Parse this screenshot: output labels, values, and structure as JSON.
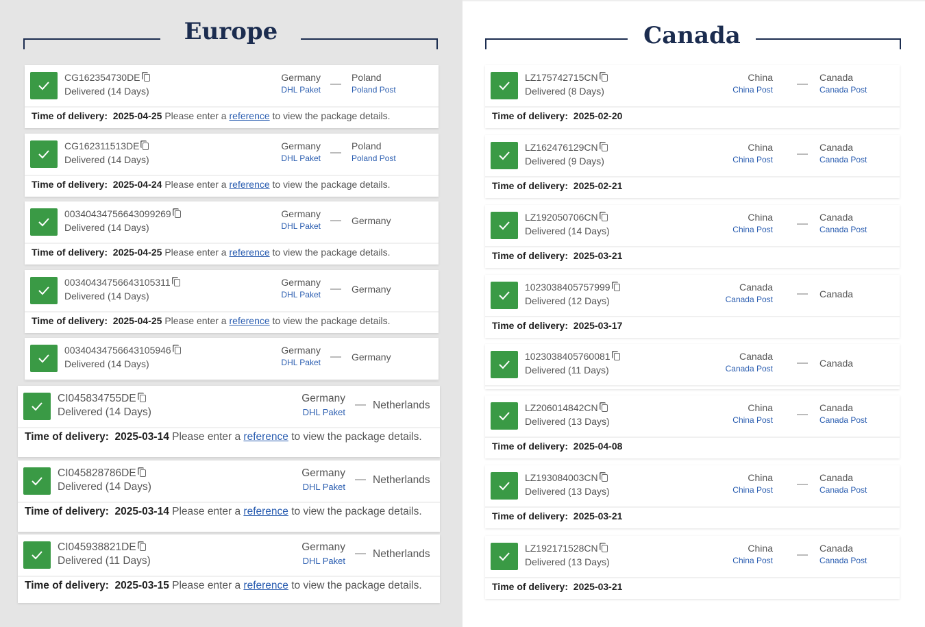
{
  "europe": {
    "title": "Europe",
    "packages": [
      {
        "tracking": "CG162354730DE",
        "status": "Delivered (14 Days)",
        "origin": "Germany",
        "origin_carrier": "DHL Paket",
        "destination": "Poland",
        "destination_carrier": "Poland Post",
        "delivery_label": "Time of delivery:",
        "delivery_date": "2025-04-25",
        "note_pre": "Please enter a",
        "note_link": "reference",
        "note_post": "to view the package details."
      },
      {
        "tracking": "CG162311513DE",
        "status": "Delivered (14 Days)",
        "origin": "Germany",
        "origin_carrier": "DHL Paket",
        "destination": "Poland",
        "destination_carrier": "Poland Post",
        "delivery_label": "Time of delivery:",
        "delivery_date": "2025-04-24",
        "note_pre": "Please enter a",
        "note_link": "reference",
        "note_post": "to view the package details."
      },
      {
        "tracking": "00340434756643099269",
        "status": "Delivered (14 Days)",
        "origin": "Germany",
        "origin_carrier": "DHL Paket",
        "destination": "Germany",
        "delivery_label": "Time of delivery:",
        "delivery_date": "2025-04-25",
        "note_pre": "Please enter a",
        "note_link": "reference",
        "note_post": "to view the package details."
      },
      {
        "tracking": "00340434756643105311",
        "status": "Delivered (14 Days)",
        "origin": "Germany",
        "origin_carrier": "DHL Paket",
        "destination": "Germany",
        "delivery_label": "Time of delivery:",
        "delivery_date": "2025-04-25",
        "note_pre": "Please enter a",
        "note_link": "reference",
        "note_post": "to view the package details."
      },
      {
        "tracking": "00340434756643105946",
        "status": "Delivered (14 Days)",
        "origin": "Germany",
        "origin_carrier": "DHL Paket",
        "destination": "Germany"
      },
      {
        "tracking": "CI045834755DE",
        "status": "Delivered (14 Days)",
        "origin": "Germany",
        "origin_carrier": "DHL Paket",
        "destination": "Netherlands",
        "delivery_label": "Time of delivery:",
        "delivery_date": "2025-03-14",
        "note_pre": "Please enter a",
        "note_link": "reference",
        "note_post": "to view the package details."
      },
      {
        "tracking": "CI045828786DE",
        "status": "Delivered (14 Days)",
        "origin": "Germany",
        "origin_carrier": "DHL Paket",
        "destination": "Netherlands",
        "delivery_label": "Time of delivery:",
        "delivery_date": "2025-03-14",
        "note_pre": "Please enter a",
        "note_link": "reference",
        "note_post": "to view the package details."
      },
      {
        "tracking": "CI045938821DE",
        "status": "Delivered (11 Days)",
        "origin": "Germany",
        "origin_carrier": "DHL Paket",
        "destination": "Netherlands",
        "delivery_label": "Time of delivery:",
        "delivery_date": "2025-03-15",
        "note_pre": "Please enter a",
        "note_link": "reference",
        "note_post": "to view the package details."
      }
    ]
  },
  "canada": {
    "title": "Canada",
    "packages": [
      {
        "tracking": "LZ175742715CN",
        "status": "Delivered (8 Days)",
        "origin": "China",
        "origin_carrier": "China Post",
        "destination": "Canada",
        "destination_carrier": "Canada Post",
        "delivery_label": "Time of delivery:",
        "delivery_date": "2025-02-20"
      },
      {
        "tracking": "LZ162476129CN",
        "status": "Delivered (9 Days)",
        "origin": "China",
        "origin_carrier": "China Post",
        "destination": "Canada",
        "destination_carrier": "Canada Post",
        "delivery_label": "Time of delivery:",
        "delivery_date": "2025-02-21"
      },
      {
        "tracking": "LZ192050706CN",
        "status": "Delivered (14 Days)",
        "origin": "China",
        "origin_carrier": "China Post",
        "destination": "Canada",
        "destination_carrier": "Canada Post",
        "delivery_label": "Time of delivery:",
        "delivery_date": "2025-03-21"
      },
      {
        "tracking": "1023038405757999",
        "status": "Delivered (12 Days)",
        "origin": "Canada",
        "origin_carrier": "Canada Post",
        "destination": "Canada",
        "delivery_label": "Time of delivery:",
        "delivery_date": "2025-03-17"
      },
      {
        "tracking": "1023038405760081",
        "status": "Delivered (11 Days)",
        "origin": "Canada",
        "origin_carrier": "Canada Post",
        "destination": "Canada"
      },
      {
        "tracking": "LZ206014842CN",
        "status": "Delivered (13 Days)",
        "origin": "China",
        "origin_carrier": "China Post",
        "destination": "Canada",
        "destination_carrier": "Canada Post",
        "delivery_label": "Time of delivery:",
        "delivery_date": "2025-04-08"
      },
      {
        "tracking": "LZ193084003CN",
        "status": "Delivered (13 Days)",
        "origin": "China",
        "origin_carrier": "China Post",
        "destination": "Canada",
        "destination_carrier": "Canada Post",
        "delivery_label": "Time of delivery:",
        "delivery_date": "2025-03-21"
      },
      {
        "tracking": "LZ192171528CN",
        "status": "Delivered (13 Days)",
        "origin": "China",
        "origin_carrier": "China Post",
        "destination": "Canada",
        "destination_carrier": "Canada Post",
        "delivery_label": "Time of delivery:",
        "delivery_date": "2025-03-21"
      }
    ]
  },
  "colors": {
    "check_green": "#3a9a45",
    "title_navy": "#1b2c4f",
    "link_blue": "#2a5db0"
  }
}
